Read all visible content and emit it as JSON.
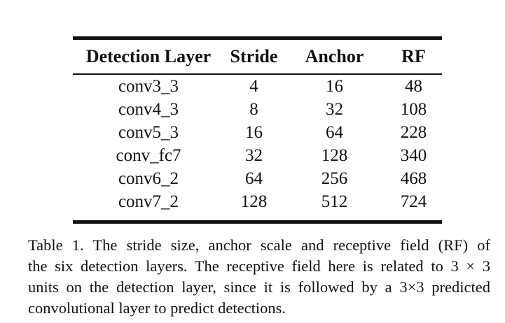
{
  "table": {
    "headers": [
      "Detection Layer",
      "Stride",
      "Anchor",
      "RF"
    ],
    "rows": [
      [
        "conv3_3",
        "4",
        "16",
        "48"
      ],
      [
        "conv4_3",
        "8",
        "32",
        "108"
      ],
      [
        "conv5_3",
        "16",
        "64",
        "228"
      ],
      [
        "conv_fc7",
        "32",
        "128",
        "340"
      ],
      [
        "conv6_2",
        "64",
        "256",
        "468"
      ],
      [
        "conv7_2",
        "128",
        "512",
        "724"
      ]
    ]
  },
  "caption": {
    "lines": [
      "Table 1. The stride size, anchor scale and receptive field (RF) of",
      "the six detection layers. The receptive field here is related to 3 × 3",
      "units on the detection layer, since it is followed by a 3×3 predicted",
      "convolutional layer to predict detections."
    ]
  }
}
